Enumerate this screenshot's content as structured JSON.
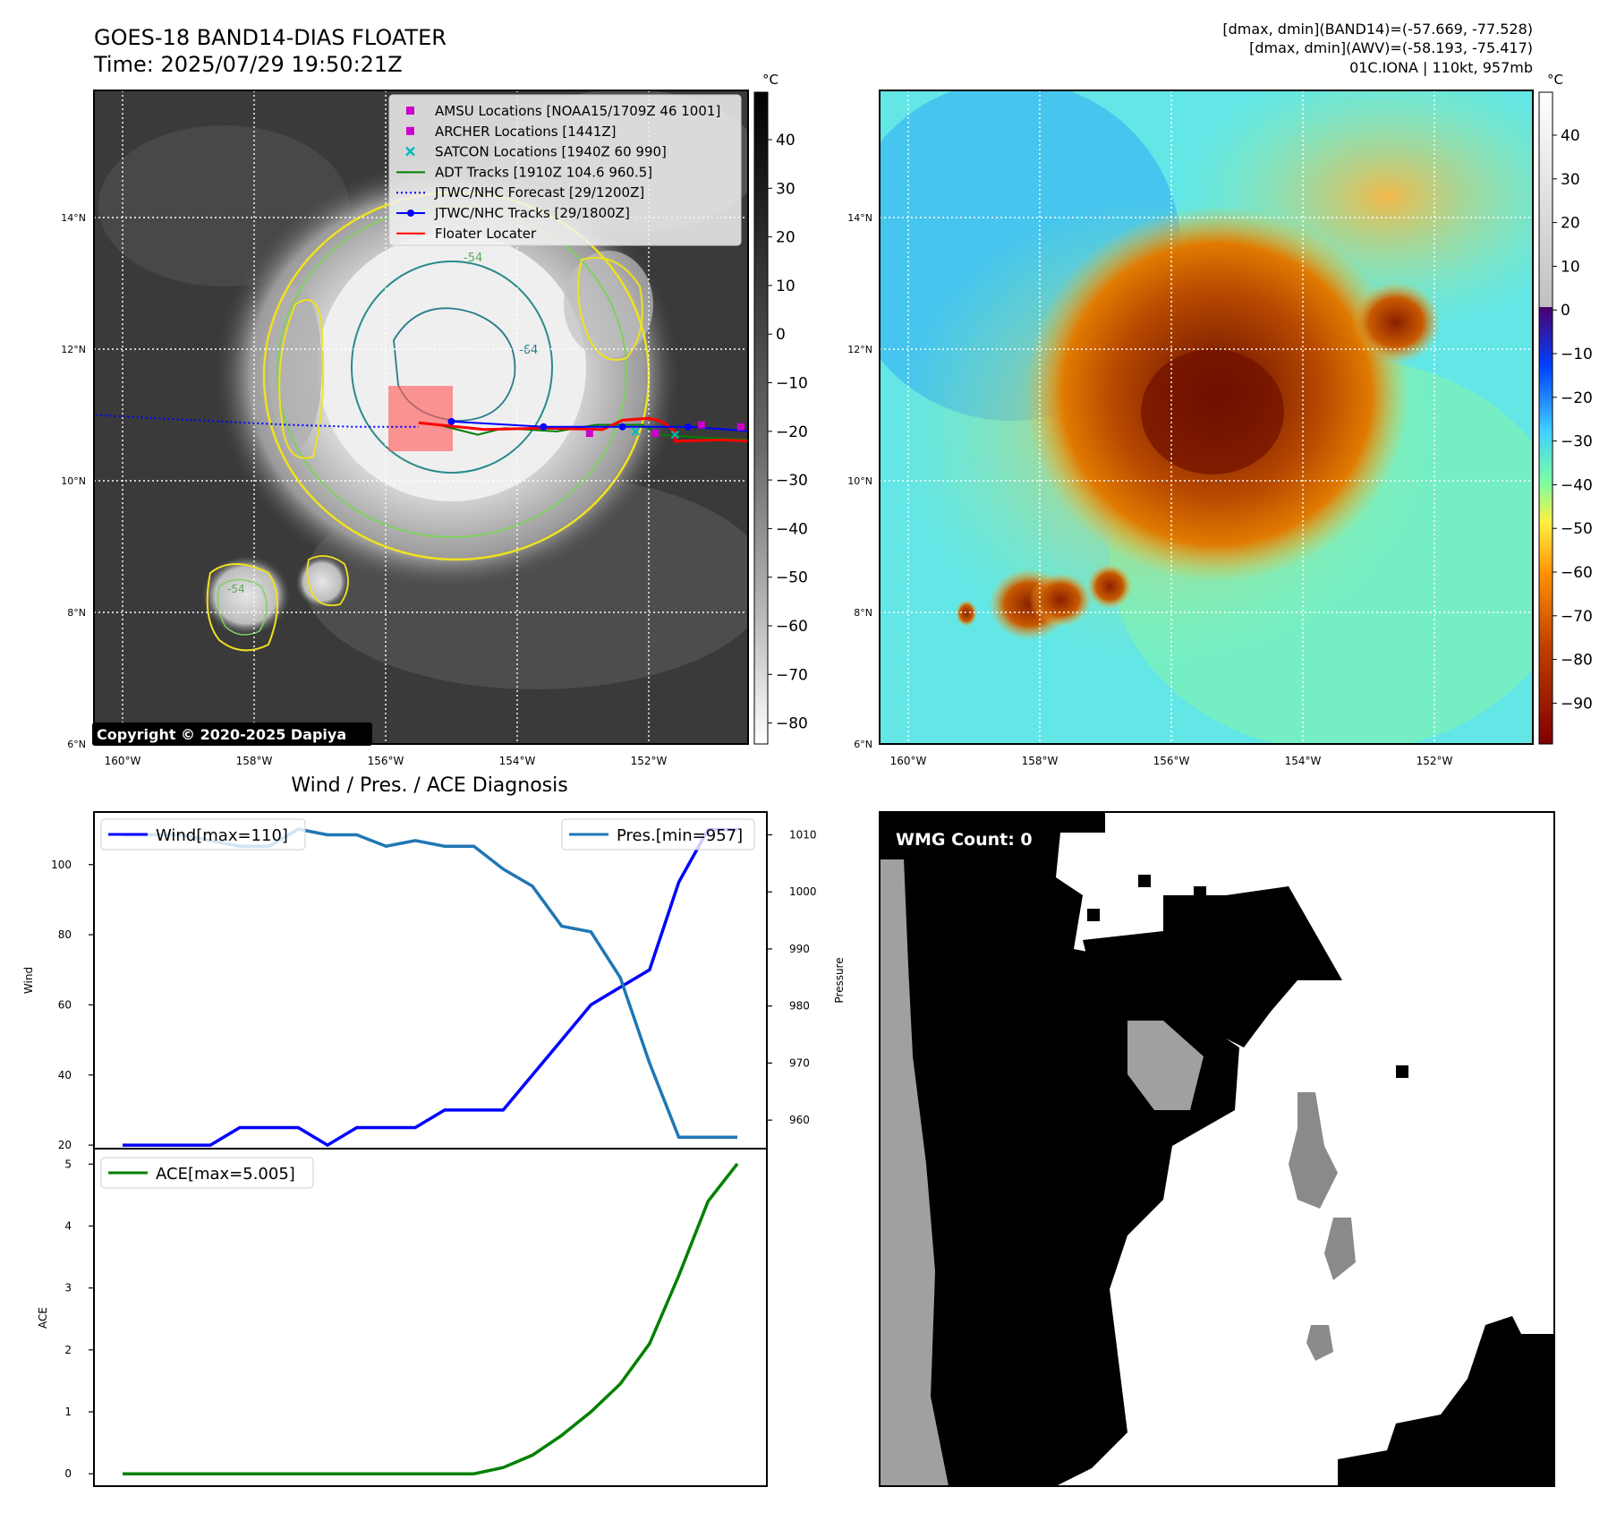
{
  "header": {
    "title_line1": "GOES-18 BAND14-DIAS FLOATER",
    "title_line2": "Time: 2025/07/29 19:50:21Z",
    "stats_line1": "[dmax, dmin](BAND14)=(-57.669, -77.528)",
    "stats_line2": "[dmax, dmin](AWV)=(-58.193, -75.417)",
    "stats_line3": "01C.IONA | 110kt, 957mb"
  },
  "map": {
    "lat_labels": [
      "14°N",
      "12°N",
      "10°N",
      "8°N",
      "6°N"
    ],
    "lon_labels": [
      "160°W",
      "158°W",
      "156°W",
      "154°W",
      "152°W"
    ],
    "copyright": "Copyright © 2020-2025 Dapiya",
    "contour_labels": [
      "-54",
      "-64",
      "-54"
    ],
    "legend": [
      {
        "label": "AMSU Locations [NOAA15/1709Z 46 1001]",
        "color": "#cc00cc",
        "marker": "square"
      },
      {
        "label": "ARCHER Locations [1441Z]",
        "color": "#cc00cc",
        "marker": "square"
      },
      {
        "label": "SATCON Locations [1940Z 60 990]",
        "color": "#00bbbb",
        "marker": "x"
      },
      {
        "label": "ADT Tracks [1910Z 104.6 960.5]",
        "color": "#008000",
        "marker": "line"
      },
      {
        "label": "JTWC/NHC Forecast [29/1200Z]",
        "color": "#0000ff",
        "marker": "dotted"
      },
      {
        "label": "JTWC/NHC Tracks [29/1800Z]",
        "color": "#0000ff",
        "marker": "line-dot"
      },
      {
        "label": "Floater Locater",
        "color": "#ff0000",
        "marker": "line"
      }
    ],
    "tracks": {
      "forecast": [
        [
          -160.4,
          11.0
        ],
        [
          -159.5,
          10.95
        ],
        [
          -158.5,
          10.9
        ],
        [
          -157.5,
          10.85
        ],
        [
          -156.5,
          10.82
        ],
        [
          -155.5,
          10.82
        ]
      ],
      "jtwc": [
        [
          -155.0,
          10.9
        ],
        [
          -153.6,
          10.82
        ],
        [
          -152.4,
          10.82
        ],
        [
          -151.4,
          10.82
        ],
        [
          -150.4,
          10.75
        ]
      ],
      "adt": [
        [
          -155.2,
          10.85
        ],
        [
          -154.6,
          10.7
        ],
        [
          -154.2,
          10.8
        ],
        [
          -153.4,
          10.75
        ],
        [
          -152.8,
          10.85
        ],
        [
          -152.1,
          10.85
        ],
        [
          -151.8,
          10.7
        ],
        [
          -151.1,
          10.65
        ],
        [
          -150.4,
          10.62
        ]
      ],
      "floater": [
        [
          -155.5,
          10.88
        ],
        [
          -154.5,
          10.78
        ],
        [
          -153.6,
          10.8
        ],
        [
          -152.7,
          10.78
        ],
        [
          -152.4,
          10.92
        ],
        [
          -152.0,
          10.95
        ],
        [
          -151.8,
          10.9
        ],
        [
          -151.6,
          10.75
        ],
        [
          -151.6,
          10.6
        ],
        [
          -150.9,
          10.62
        ],
        [
          -150.4,
          10.6
        ]
      ],
      "amsu_points": [
        [
          -152.9,
          10.72
        ],
        [
          -151.9,
          10.72
        ],
        [
          -151.2,
          10.85
        ],
        [
          -150.6,
          10.82
        ]
      ],
      "satcon_points": [
        [
          -152.2,
          10.75
        ],
        [
          -151.6,
          10.7
        ]
      ]
    }
  },
  "colorbar_gray": {
    "unit": "°C",
    "ticks": [
      "40",
      "30",
      "20",
      "10",
      "0",
      "−10",
      "−20",
      "−30",
      "−40",
      "−50",
      "−60",
      "−70",
      "−80"
    ]
  },
  "colorbar_color": {
    "unit": "°C",
    "ticks": [
      "40",
      "30",
      "20",
      "10",
      "0",
      "−10",
      "−20",
      "−30",
      "−40",
      "−50",
      "−60",
      "−70",
      "−80",
      "−90"
    ]
  },
  "chart_data": [
    {
      "type": "line",
      "title": "Wind / Pres. / ACE Diagnosis",
      "ylabel": "Wind",
      "y2label": "Pressure",
      "ylim": [
        19,
        115
      ],
      "y2lim": [
        955,
        1014
      ],
      "yticks": [
        "20",
        "40",
        "60",
        "80",
        "100"
      ],
      "y2ticks": [
        "960",
        "970",
        "980",
        "990",
        "1000",
        "1010"
      ],
      "series": [
        {
          "name": "Wind[max=110]",
          "axis": "left",
          "color": "#0000ff",
          "values": [
            20,
            20,
            20,
            20,
            25,
            25,
            25,
            20,
            25,
            25,
            25,
            30,
            30,
            30,
            40,
            50,
            60,
            65,
            70,
            95,
            110,
            110
          ]
        },
        {
          "name": "Pres.[min=957]",
          "axis": "right",
          "color": "#1f77b4",
          "values": [
            1010,
            1010,
            1010,
            1009,
            1008,
            1008,
            1011,
            1010,
            1010,
            1008,
            1009,
            1008,
            1008,
            1004,
            1001,
            994,
            993,
            985,
            970,
            957,
            957,
            957
          ]
        }
      ]
    },
    {
      "type": "line",
      "ylabel": "ACE",
      "ylim": [
        -0.2,
        5.25
      ],
      "yticks": [
        "0",
        "1",
        "2",
        "3",
        "4",
        "5"
      ],
      "series": [
        {
          "name": "ACE[max=5.005]",
          "color": "#008000",
          "values": [
            0,
            0,
            0,
            0,
            0,
            0,
            0,
            0,
            0,
            0,
            0,
            0,
            0,
            0.1,
            0.3,
            0.62,
            1.0,
            1.45,
            2.1,
            3.2,
            4.4,
            5.005
          ]
        }
      ]
    }
  ],
  "wmg": {
    "label": "WMG Count: 0"
  }
}
